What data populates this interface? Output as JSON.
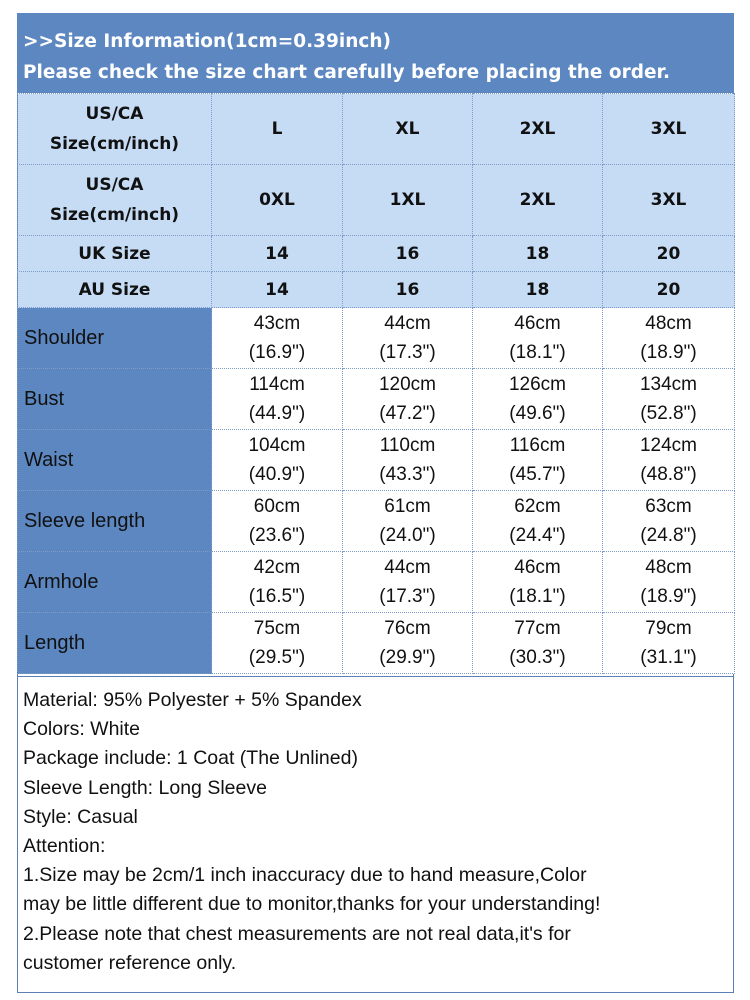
{
  "header": {
    "line1": ">>Size Information(1cm=0.39inch)",
    "line2": "Please check the size chart carefully before placing the order."
  },
  "table": {
    "header_rows": [
      {
        "label_line1": "US/CA",
        "label_line2": "Size(cm/inch)",
        "cells": [
          "L",
          "XL",
          "2XL",
          "3XL"
        ]
      },
      {
        "label_line1": "US/CA",
        "label_line2": "Size(cm/inch)",
        "cells": [
          "0XL",
          "1XL",
          "2XL",
          "3XL"
        ]
      },
      {
        "label": "UK Size",
        "cells": [
          "14",
          "16",
          "18",
          "20"
        ]
      },
      {
        "label": "AU Size",
        "cells": [
          "14",
          "16",
          "18",
          "20"
        ]
      }
    ],
    "rows": [
      {
        "label": "Shoulder",
        "cells": [
          {
            "cm": "43cm",
            "inch": "(16.9\")"
          },
          {
            "cm": "44cm",
            "inch": "(17.3\")"
          },
          {
            "cm": "46cm",
            "inch": "(18.1\")"
          },
          {
            "cm": "48cm",
            "inch": "(18.9\")"
          }
        ]
      },
      {
        "label": "Bust",
        "cells": [
          {
            "cm": "114cm",
            "inch": "(44.9\")"
          },
          {
            "cm": "120cm",
            "inch": "(47.2\")"
          },
          {
            "cm": "126cm",
            "inch": "(49.6\")"
          },
          {
            "cm": "134cm",
            "inch": "(52.8\")"
          }
        ]
      },
      {
        "label": "Waist",
        "cells": [
          {
            "cm": "104cm",
            "inch": "(40.9\")"
          },
          {
            "cm": "110cm",
            "inch": "(43.3\")"
          },
          {
            "cm": "116cm",
            "inch": "(45.7\")"
          },
          {
            "cm": "124cm",
            "inch": "(48.8\")"
          }
        ]
      },
      {
        "label": "Sleeve length",
        "cells": [
          {
            "cm": "60cm",
            "inch": "(23.6\")"
          },
          {
            "cm": "61cm",
            "inch": "(24.0\")"
          },
          {
            "cm": "62cm",
            "inch": "(24.4\")"
          },
          {
            "cm": "63cm",
            "inch": "(24.8\")"
          }
        ]
      },
      {
        "label": "Armhole",
        "cells": [
          {
            "cm": "42cm",
            "inch": "(16.5\")"
          },
          {
            "cm": "44cm",
            "inch": "(17.3\")"
          },
          {
            "cm": "46cm",
            "inch": "(18.1\")"
          },
          {
            "cm": "48cm",
            "inch": "(18.9\")"
          }
        ]
      },
      {
        "label": "Length",
        "cells": [
          {
            "cm": "75cm",
            "inch": "(29.5\")"
          },
          {
            "cm": "76cm",
            "inch": "(29.9\")"
          },
          {
            "cm": "77cm",
            "inch": "(30.3\")"
          },
          {
            "cm": "79cm",
            "inch": "(31.1\")"
          }
        ]
      }
    ]
  },
  "info": [
    "Material: 95% Polyester + 5% Spandex",
    "Colors: White",
    "Package include: 1 Coat (The Unlined)",
    "Sleeve Length: Long Sleeve",
    "Style: Casual",
    "Attention:",
    "1.Size may be 2cm/1 inch inaccuracy due to hand measure,Color",
    "may be little different due to monitor,thanks for your understanding!",
    "2.Please note that chest measurements are not real data,it's for",
    "customer reference only."
  ],
  "colors": {
    "header_bg": "#5c87c0",
    "size_header_bg": "#c6dcf5",
    "row_label_bg": "#5c87c0"
  }
}
